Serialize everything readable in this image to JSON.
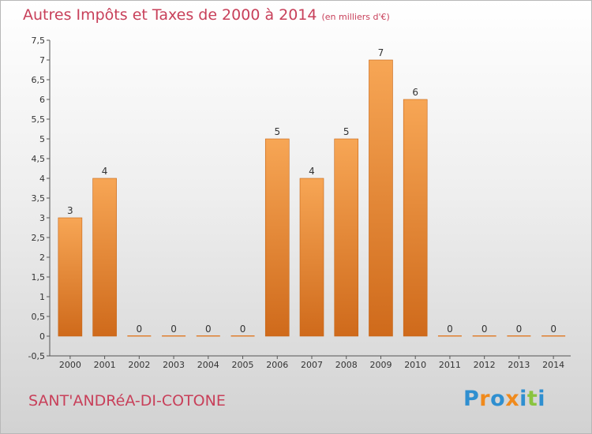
{
  "chart_data": {
    "type": "bar",
    "title": "Autres Impôts et Taxes de 2000 à 2014",
    "subtitle": "(en milliers d'€)",
    "categories": [
      "2000",
      "2001",
      "2002",
      "2003",
      "2004",
      "2005",
      "2006",
      "2007",
      "2008",
      "2009",
      "2010",
      "2011",
      "2012",
      "2013",
      "2014"
    ],
    "values": [
      3,
      4,
      0,
      0,
      0,
      0,
      5,
      4,
      5,
      7,
      6,
      0,
      0,
      0,
      0
    ],
    "ylim": [
      -0.5,
      7.5
    ],
    "yticks": [
      "-0,5",
      "0",
      "0,5",
      "1",
      "1,5",
      "2",
      "2,5",
      "3",
      "3,5",
      "4",
      "4,5",
      "5",
      "5,5",
      "6",
      "6,5",
      "7",
      "7,5"
    ],
    "grid": false,
    "bar_color": "#f0953f",
    "bar_color_dark": "#d06a1a"
  },
  "footer": {
    "commune": "SANT'ANDRéA-DI-COTONE"
  },
  "logo": {
    "text": "Proxiti",
    "colors": [
      "#2f8fd0",
      "#f08a1c",
      "#2f8fd0",
      "#f08a1c",
      "#2f8fd0",
      "#8ac43f",
      "#2f8fd0"
    ]
  },
  "colors": {
    "title": "#c8405a"
  }
}
